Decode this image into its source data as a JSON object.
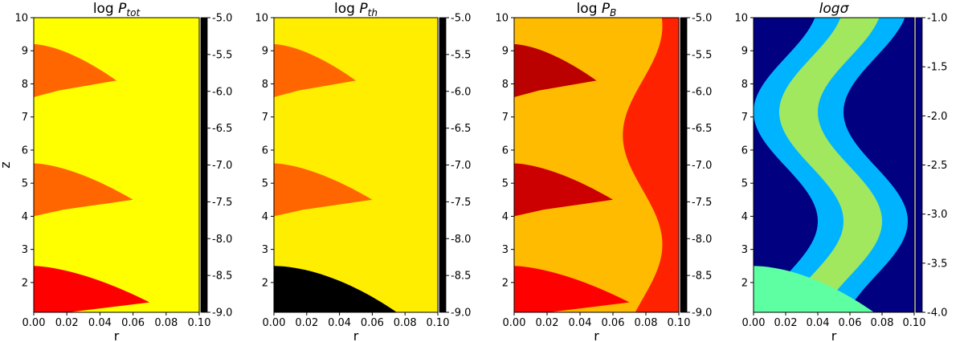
{
  "chart_data": [
    {
      "type": "heatmap",
      "title_base": "log",
      "title_sym": "P",
      "title_sub": "tot",
      "xlabel": "r",
      "ylabel": "z",
      "xlim": [
        0.0,
        0.1
      ],
      "ylim": [
        1.1,
        10
      ],
      "xticks": [
        "0.00",
        "0.02",
        "0.04",
        "0.06",
        "0.08",
        "0.10"
      ],
      "yticks": [
        "2",
        "3",
        "4",
        "5",
        "6",
        "7",
        "8",
        "9",
        "10"
      ],
      "colorbar": {
        "range": [
          -9.0,
          -5.0
        ],
        "colormap": "hot",
        "ticks": [
          "-5.0",
          "-5.5",
          "-6.0",
          "-6.5",
          "-7.0",
          "-7.5",
          "-8.0",
          "-8.5",
          "-9.0"
        ]
      },
      "features": {
        "background": -6.0,
        "shock_domes": [
          {
            "z_top": 2.5,
            "r_edge": 0.07,
            "value": -7.5
          },
          {
            "z_top": 5.6,
            "r_edge": 0.06,
            "value": -6.9
          },
          {
            "z_top": 9.2,
            "r_edge": 0.05,
            "value": -6.9
          }
        ],
        "low_region": null
      }
    },
    {
      "type": "heatmap",
      "title_base": "log",
      "title_sym": "P",
      "title_sub": "th",
      "xlabel": "r",
      "ylabel": "",
      "xlim": [
        0.0,
        0.1
      ],
      "ylim": [
        1.1,
        10
      ],
      "xticks": [
        "0.00",
        "0.02",
        "0.04",
        "0.06",
        "0.08",
        "0.10"
      ],
      "yticks": [
        "2",
        "3",
        "4",
        "5",
        "6",
        "7",
        "8",
        "9",
        "10"
      ],
      "colorbar": {
        "range": [
          -9.0,
          -5.0
        ],
        "colormap": "hot",
        "ticks": [
          "-5.0",
          "-5.5",
          "-6.0",
          "-6.5",
          "-7.0",
          "-7.5",
          "-8.0",
          "-8.5",
          "-9.0"
        ]
      },
      "features": {
        "background": -6.1,
        "shock_domes": [
          {
            "z_top": 5.6,
            "r_edge": 0.06,
            "value": -6.9
          },
          {
            "z_top": 9.2,
            "r_edge": 0.05,
            "value": -6.9
          }
        ],
        "low_region": {
          "z_top": 2.5,
          "r_edge": 0.075,
          "value": -9.0
        }
      }
    },
    {
      "type": "heatmap",
      "title_base": "log",
      "title_sym": "P",
      "title_sub": "B",
      "xlabel": "r",
      "ylabel": "",
      "xlim": [
        0.0,
        0.1
      ],
      "ylim": [
        1.1,
        10
      ],
      "xticks": [
        "0.00",
        "0.02",
        "0.04",
        "0.06",
        "0.08",
        "0.10"
      ],
      "yticks": [
        "2",
        "3",
        "4",
        "5",
        "6",
        "7",
        "8",
        "9",
        "10"
      ],
      "colorbar": {
        "range": [
          -9.0,
          -5.0
        ],
        "colormap": "hot",
        "ticks": [
          "-5.0",
          "-5.5",
          "-6.0",
          "-6.5",
          "-7.0",
          "-7.5",
          "-8.0",
          "-8.5",
          "-9.0"
        ]
      },
      "features": {
        "background": -6.4,
        "outer_value": -7.3,
        "shock_domes": [
          {
            "z_top": 2.5,
            "r_edge": 0.07,
            "value": -7.5
          },
          {
            "z_top": 5.6,
            "r_edge": 0.06,
            "value": -7.8
          },
          {
            "z_top": 9.2,
            "r_edge": 0.05,
            "value": -7.9
          }
        ],
        "low_region": null
      }
    },
    {
      "type": "heatmap",
      "title_base": "log",
      "title_sym": "σ",
      "title_sub": "",
      "title_italic": true,
      "xlabel": "r",
      "ylabel": "",
      "xlim": [
        0.0,
        0.1
      ],
      "ylim": [
        1.1,
        10
      ],
      "xticks": [
        "0.00",
        "0.02",
        "0.04",
        "0.06",
        "0.08",
        "0.10"
      ],
      "yticks": [
        "2",
        "3",
        "4",
        "5",
        "6",
        "7",
        "8",
        "9",
        "10"
      ],
      "colorbar": {
        "range": [
          -4.0,
          -1.0
        ],
        "colormap": "jet",
        "ticks": [
          "-1.0",
          "-1.5",
          "-2.0",
          "-2.5",
          "-3.0",
          "-3.5",
          "-4.0"
        ]
      },
      "features": {
        "background": -4.0,
        "snake_value": -3.1,
        "snake_core": -2.2,
        "bottom_region": {
          "z_top": 2.5,
          "r_edge": 0.075,
          "value": -2.6
        }
      }
    }
  ]
}
